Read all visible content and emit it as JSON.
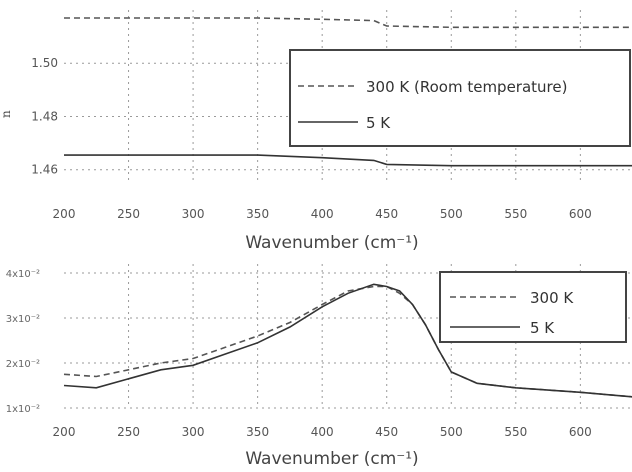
{
  "chart_data": [
    {
      "type": "line",
      "title": "",
      "xlabel": "Wavenumber (cm⁻¹)",
      "ylabel": "n",
      "xlim": [
        200,
        640
      ],
      "ylim": [
        1.455,
        1.52
      ],
      "xticks": [
        "200",
        "250",
        "300",
        "350",
        "400",
        "450",
        "500",
        "550",
        "600"
      ],
      "yticks": [
        "1.46",
        "1.48",
        "1.50"
      ],
      "grid": true,
      "legend_position": "top-right",
      "series": [
        {
          "name": "300 K (Room temperature)",
          "style": "dashed",
          "color": "#555555",
          "x": [
            200,
            250,
            300,
            350,
            400,
            440,
            450,
            500,
            550,
            600,
            640
          ],
          "y": [
            1.517,
            1.517,
            1.517,
            1.517,
            1.5165,
            1.516,
            1.514,
            1.5135,
            1.5135,
            1.5135,
            1.5135
          ]
        },
        {
          "name": "5 K",
          "style": "solid",
          "color": "#333333",
          "x": [
            200,
            250,
            300,
            350,
            400,
            440,
            450,
            500,
            550,
            600,
            640
          ],
          "y": [
            1.4655,
            1.4655,
            1.4655,
            1.4655,
            1.4645,
            1.4635,
            1.462,
            1.4615,
            1.4615,
            1.4615,
            1.4615
          ]
        }
      ]
    },
    {
      "type": "line",
      "title": "",
      "xlabel": "Wavenumber (cm⁻¹)",
      "ylabel": "",
      "xlim": [
        200,
        640
      ],
      "ylim": [
        1,
        4.2
      ],
      "xticks": [
        "200",
        "250",
        "300",
        "350",
        "400",
        "450",
        "500",
        "550",
        "600"
      ],
      "yticks": [
        "1x10⁻²",
        "2x10⁻²",
        "3x10⁻²",
        "4x10⁻²"
      ],
      "grid": true,
      "legend_position": "top-right",
      "series": [
        {
          "name": "300 K",
          "style": "dashed",
          "color": "#555555",
          "x": [
            200,
            225,
            250,
            275,
            300,
            325,
            350,
            375,
            400,
            420,
            440,
            450,
            460,
            470,
            480,
            490,
            500,
            520,
            550,
            600,
            640
          ],
          "y": [
            1.75,
            1.7,
            1.85,
            2.0,
            2.1,
            2.35,
            2.6,
            2.9,
            3.3,
            3.6,
            3.7,
            3.7,
            3.55,
            3.3,
            2.85,
            2.3,
            1.8,
            1.55,
            1.45,
            1.35,
            1.25
          ]
        },
        {
          "name": "5 K",
          "style": "solid",
          "color": "#333333",
          "x": [
            200,
            225,
            250,
            275,
            300,
            325,
            350,
            375,
            400,
            420,
            440,
            450,
            460,
            470,
            480,
            490,
            500,
            520,
            550,
            600,
            640
          ],
          "y": [
            1.5,
            1.45,
            1.65,
            1.85,
            1.95,
            2.2,
            2.45,
            2.8,
            3.25,
            3.55,
            3.75,
            3.7,
            3.6,
            3.3,
            2.85,
            2.3,
            1.8,
            1.55,
            1.45,
            1.35,
            1.25
          ]
        }
      ]
    }
  ]
}
